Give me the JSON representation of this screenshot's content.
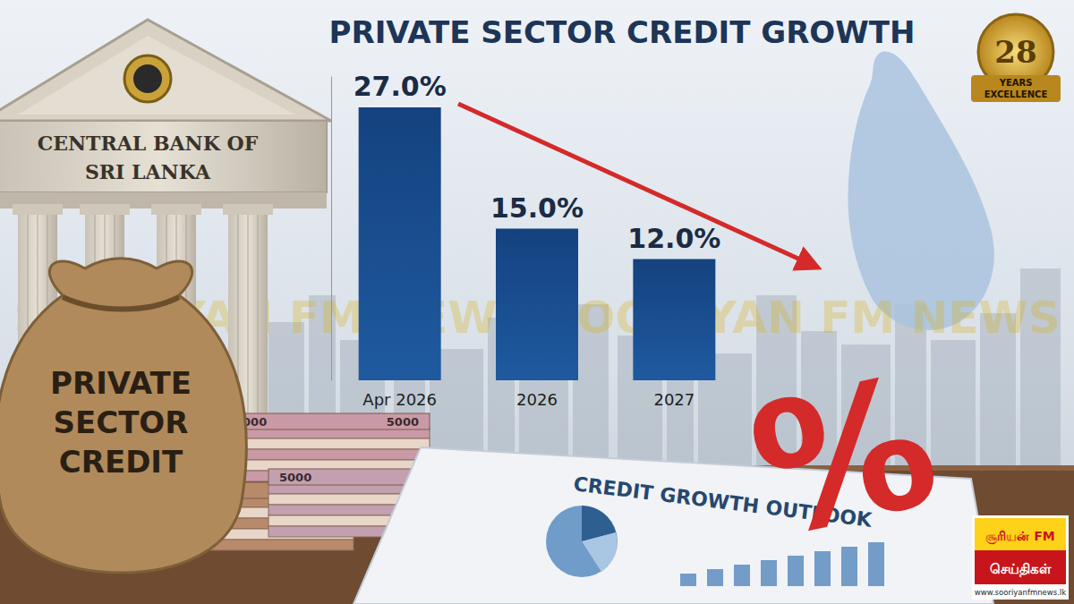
{
  "chart_data": {
    "type": "bar",
    "title": "PRIVATE SECTOR CREDIT GROWTH",
    "categories": [
      "Apr 2026",
      "2026",
      "2027"
    ],
    "values": [
      27.0,
      15.0,
      12.0
    ],
    "value_labels": [
      "27.0%",
      "15.0%",
      "12.0%"
    ],
    "color": "#14427f",
    "ylim": [
      0,
      30
    ],
    "data_labels": true,
    "tick_labels": "x",
    "grid": false
  },
  "scene": {
    "building_sign": [
      "CENTRAL BANK OF",
      "SRI LANKA"
    ],
    "bag_label": [
      "PRIVATE",
      "SECTOR",
      "CREDIT"
    ],
    "banknote": "5000",
    "document_title": "CREDIT GROWTH OUTLOOK",
    "percent_symbol": "%",
    "watermark": "SOORIYAN FM NEWS SOORIYAN FM NEWS",
    "badge": {
      "number": "28",
      "lines": [
        "YEARS",
        "EXCELLENCE"
      ]
    },
    "logo": {
      "brand": "சூரியன் FM",
      "subtitle": "செய்திகள்",
      "url": "www.sooriyanfmnews.lk"
    }
  }
}
